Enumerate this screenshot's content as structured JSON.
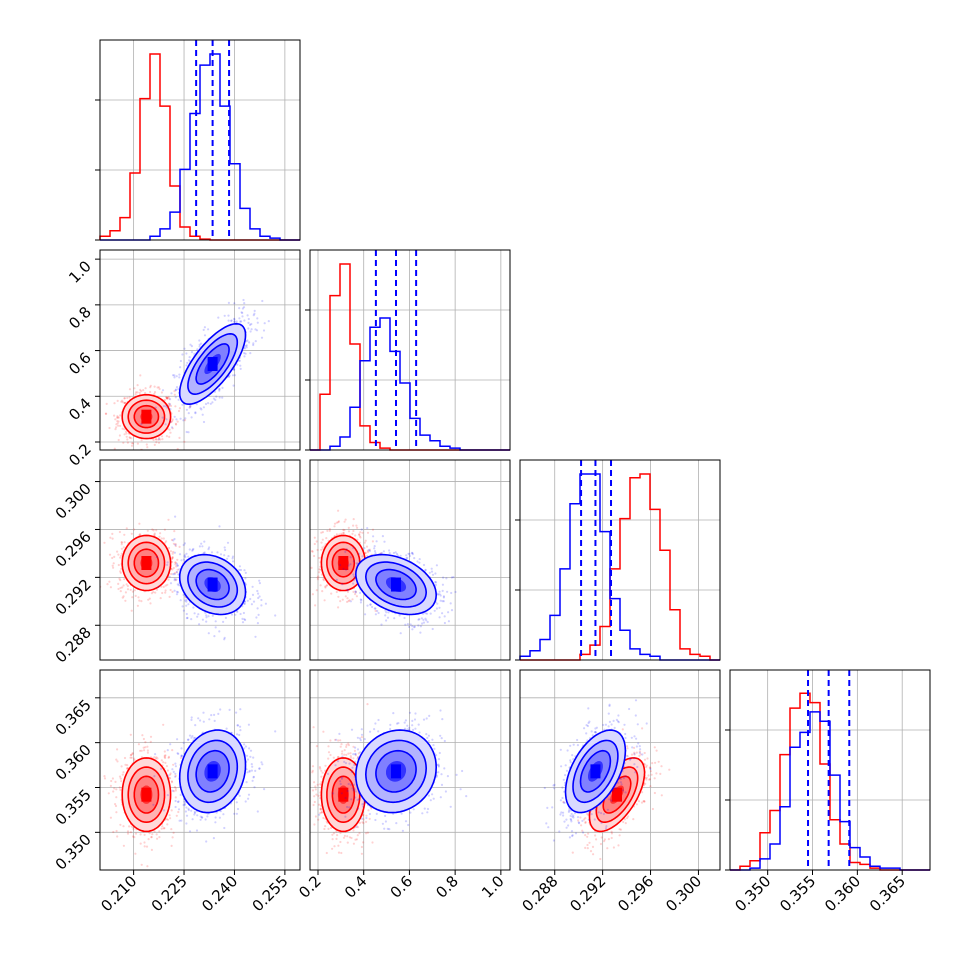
{
  "chart_data": {
    "type": "corner",
    "title": "",
    "parameters": [
      {
        "ticks": [
          0.21,
          0.225,
          0.24,
          0.255
        ],
        "tick_labels": [
          "0.210",
          "0.225",
          "0.240",
          "0.255"
        ],
        "range": [
          0.2,
          0.2595
        ]
      },
      {
        "ticks": [
          0.2,
          0.4,
          0.6,
          0.8,
          1.0
        ],
        "tick_labels": [
          "0.2",
          "0.4",
          "0.6",
          "0.8",
          "1.0"
        ],
        "range": [
          0.165,
          1.04
        ]
      },
      {
        "ticks": [
          0.288,
          0.292,
          0.296,
          0.3
        ],
        "tick_labels": [
          "0.288",
          "0.292",
          "0.296",
          "0.300"
        ],
        "range": [
          0.2851,
          0.3018
        ]
      },
      {
        "ticks": [
          0.35,
          0.355,
          0.36,
          0.365
        ],
        "tick_labels": [
          "0.350",
          "0.355",
          "0.360",
          "0.365"
        ],
        "range": [
          0.3458,
          0.3681
        ]
      }
    ],
    "series": [
      {
        "color": "#ff0000",
        "means": [
          0.2138,
          0.3108,
          0.2932,
          0.3542
        ],
        "sds": [
          0.0036,
          0.048,
          0.00115,
          0.00205
        ],
        "corr": [
          [
            1,
            0,
            0,
            0
          ],
          [
            0,
            1,
            0,
            0
          ],
          [
            0,
            0,
            1,
            0.6
          ],
          [
            0,
            0,
            0.6,
            1
          ]
        ],
        "histograms": [
          {
            "counts": [
              0.02,
              0.05,
              0.12,
              0.36,
              0.76,
              1.0,
              0.72,
              0.29,
              0.07,
              0.02,
              0.005,
              0,
              0,
              0,
              0,
              0,
              0,
              0,
              0,
              0
            ]
          },
          {
            "counts": [
              0,
              0.3,
              0.83,
              1.0,
              0.57,
              0.13,
              0.04,
              0.01,
              0,
              0,
              0,
              0,
              0,
              0,
              0,
              0,
              0,
              0,
              0,
              0
            ]
          },
          {
            "counts": [
              0,
              0,
              0,
              0,
              0,
              0,
              0.03,
              0.08,
              0.18,
              0.49,
              0.76,
              0.98,
              1.0,
              0.81,
              0.59,
              0.27,
              0.06,
              0.03,
              0.02,
              0
            ]
          },
          {
            "counts": [
              0,
              0.02,
              0.05,
              0.2,
              0.32,
              0.62,
              0.87,
              0.95,
              0.9,
              0.57,
              0.27,
              0.14,
              0.04,
              0.03,
              0.01,
              0,
              0,
              0,
              0,
              0
            ]
          }
        ]
      },
      {
        "color": "#0000ff",
        "means": [
          0.2335,
          0.5413,
          0.2914,
          0.3568
        ],
        "sds": [
          0.0049,
          0.088,
          0.00125,
          0.0023
        ],
        "corr": [
          [
            1,
            0.72,
            -0.25,
            0.15
          ],
          [
            0.72,
            1,
            -0.35,
            0.1
          ],
          [
            -0.25,
            -0.35,
            1,
            0.5
          ],
          [
            0.15,
            0.1,
            0.5,
            1
          ]
        ],
        "histograms": [
          {
            "counts": [
              0,
              0,
              0,
              0,
              0,
              0.02,
              0.06,
              0.15,
              0.38,
              0.68,
              0.94,
              1.0,
              0.72,
              0.41,
              0.17,
              0.06,
              0.02,
              0.01,
              0,
              0
            ]
          },
          {
            "counts": [
              0,
              0,
              0.02,
              0.07,
              0.23,
              0.48,
              0.66,
              0.71,
              0.53,
              0.36,
              0.17,
              0.08,
              0.05,
              0.02,
              0.01,
              0,
              0,
              0,
              0,
              0
            ]
          },
          {
            "counts": [
              0.02,
              0.05,
              0.11,
              0.24,
              0.49,
              0.84,
              1.0,
              1.0,
              0.69,
              0.33,
              0.16,
              0.06,
              0.03,
              0.02,
              0,
              0,
              0,
              0,
              0,
              0
            ]
          },
          {
            "counts": [
              0,
              0,
              0.01,
              0.06,
              0.14,
              0.34,
              0.66,
              0.74,
              0.85,
              0.8,
              0.51,
              0.26,
              0.12,
              0.07,
              0.02,
              0.01,
              0.01,
              0,
              0,
              0
            ]
          }
        ],
        "quantile_lines": [
          [
            0.2286,
            0.2335,
            0.2384
          ],
          [
            0.4533,
            0.5413,
            0.6293
          ],
          [
            0.2902,
            0.2914,
            0.2927
          ],
          [
            0.3545,
            0.3568,
            0.3591
          ]
        ]
      }
    ],
    "grid": true,
    "legend": "none"
  }
}
